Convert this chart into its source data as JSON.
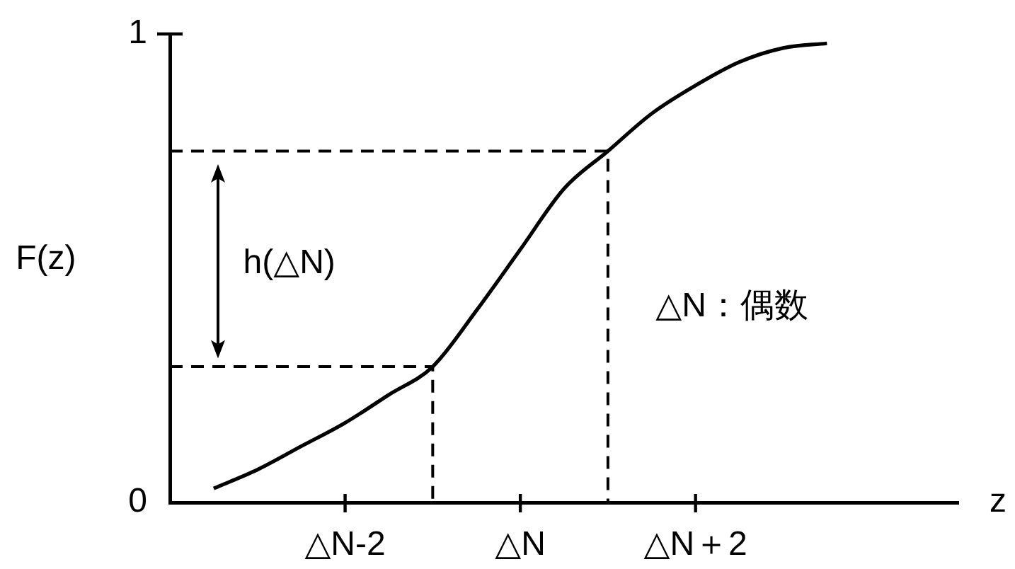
{
  "chart_data": {
    "type": "line",
    "ylabel": "F(z)",
    "xlabel": "z",
    "annotations": [
      "h(△N)",
      "△N：偶数"
    ],
    "categories": [
      null,
      null,
      null,
      null,
      "△N-2",
      null,
      null,
      null,
      "△N",
      null,
      null,
      null,
      "△N＋2",
      null,
      null,
      null,
      null,
      null,
      null
    ],
    "ylim": [
      0,
      1
    ],
    "yticks": [
      0,
      1
    ],
    "marker": "none",
    "line_style": "solid",
    "series": [
      {
        "color": "#000000",
        "values": [
          null,
          0.03,
          0.07,
          0.12,
          0.17,
          0.23,
          0.29,
          0.41,
          0.54,
          0.67,
          0.75,
          0.83,
          0.89,
          0.94,
          0.97,
          0.98,
          null,
          null,
          null
        ]
      },
      {
        "type": "step",
        "color": "#000000",
        "line_style": "dashed",
        "values": [
          0.75,
          0.75,
          0.75,
          0.75,
          0.75,
          0.75,
          0.75,
          0.75,
          0.75,
          0.75,
          0,
          null,
          null,
          null,
          null,
          null,
          null,
          null,
          null
        ]
      },
      {
        "type": "step",
        "color": "#000000",
        "line_style": "dashed",
        "values": [
          0.29,
          0.29,
          0.29,
          0.29,
          0.29,
          0.29,
          0,
          null,
          null,
          null,
          null,
          null,
          null,
          null,
          null,
          null,
          null,
          null,
          null
        ]
      }
    ]
  }
}
